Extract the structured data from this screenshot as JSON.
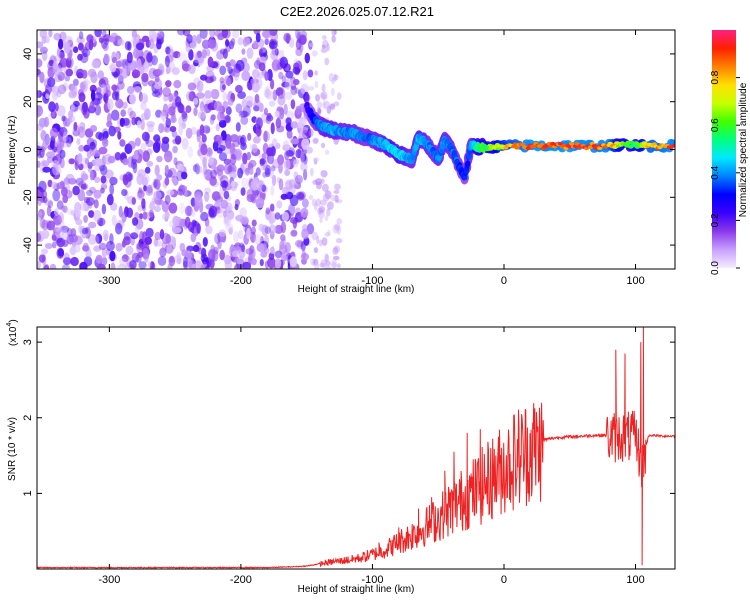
{
  "title": "C2E2.2026.025.07.12.R21",
  "chart_data": [
    {
      "type": "heatmap",
      "xlabel": "Height of straight line (km)",
      "ylabel": "Frequency (Hz)",
      "xlim": [
        -355,
        130
      ],
      "ylim": [
        -50,
        50
      ],
      "xticks": [
        -300,
        -200,
        -100,
        0,
        100
      ],
      "yticks": [
        -40,
        -20,
        0,
        20,
        40
      ],
      "colorbar": {
        "label": "Normalized spectral amplitude",
        "range": [
          0,
          1
        ],
        "ticks": [
          "0.0",
          "0.2",
          "0.4",
          "0.6",
          "0.8"
        ],
        "colors": [
          "#f4ecff",
          "#c8a0ff",
          "#8a3ae8",
          "#3a00ff",
          "#0000ff",
          "#0080ff",
          "#00e8ff",
          "#00ff80",
          "#40ff00",
          "#c8ff00",
          "#ffe000",
          "#ff8000",
          "#ff2000",
          "#ff2080"
        ]
      },
      "noise_region": {
        "x": [
          -355,
          -147
        ],
        "level": 0.18
      },
      "sparse_region": {
        "x": [
          -147,
          -125
        ],
        "level": 0.08
      },
      "ridge": [
        {
          "x": -150,
          "y": 18,
          "v": 0.22
        },
        {
          "x": -145,
          "y": 13,
          "v": 0.3
        },
        {
          "x": -140,
          "y": 10,
          "v": 0.38
        },
        {
          "x": -135,
          "y": 9,
          "v": 0.42
        },
        {
          "x": -130,
          "y": 8,
          "v": 0.42
        },
        {
          "x": -125,
          "y": 8,
          "v": 0.4
        },
        {
          "x": -120,
          "y": 7,
          "v": 0.38
        },
        {
          "x": -115,
          "y": 7,
          "v": 0.4
        },
        {
          "x": -110,
          "y": 6,
          "v": 0.38
        },
        {
          "x": -105,
          "y": 5,
          "v": 0.35
        },
        {
          "x": -100,
          "y": 4,
          "v": 0.38
        },
        {
          "x": -95,
          "y": 3,
          "v": 0.4
        },
        {
          "x": -90,
          "y": 2,
          "v": 0.42
        },
        {
          "x": -85,
          "y": 0,
          "v": 0.45
        },
        {
          "x": -80,
          "y": -2,
          "v": 0.45
        },
        {
          "x": -75,
          "y": -3,
          "v": 0.42
        },
        {
          "x": -70,
          "y": -4,
          "v": 0.38
        },
        {
          "x": -65,
          "y": 5,
          "v": 0.42
        },
        {
          "x": -60,
          "y": 3,
          "v": 0.4
        },
        {
          "x": -55,
          "y": 0,
          "v": 0.38
        },
        {
          "x": -50,
          "y": -4,
          "v": 0.38
        },
        {
          "x": -45,
          "y": 4,
          "v": 0.4
        },
        {
          "x": -40,
          "y": 0,
          "v": 0.38
        },
        {
          "x": -35,
          "y": -6,
          "v": 0.35
        },
        {
          "x": -30,
          "y": -12,
          "v": 0.3
        },
        {
          "x": -25,
          "y": 2,
          "v": 0.38
        },
        {
          "x": -20,
          "y": 1,
          "v": 0.55
        },
        {
          "x": -10,
          "y": 1,
          "v": 0.62
        },
        {
          "x": 0,
          "y": 1.5,
          "v": 0.75
        },
        {
          "x": 20,
          "y": 1.5,
          "v": 0.88
        },
        {
          "x": 40,
          "y": 1.5,
          "v": 0.88
        },
        {
          "x": 60,
          "y": 1.5,
          "v": 0.88
        },
        {
          "x": 80,
          "y": 1.5,
          "v": 0.85
        },
        {
          "x": 90,
          "y": 2,
          "v": 0.62
        },
        {
          "x": 100,
          "y": 2,
          "v": 0.58
        },
        {
          "x": 110,
          "y": 1.5,
          "v": 0.8
        },
        {
          "x": 130,
          "y": 1.5,
          "v": 0.88
        }
      ]
    },
    {
      "type": "line",
      "xlabel": "Height of straight line (km)",
      "ylabel": "SNR (10 * v/v)",
      "scale_label": "(x10",
      "scale_exponent": "4",
      "xlim": [
        -355,
        130
      ],
      "ylim": [
        0,
        3.2
      ],
      "xticks": [
        -300,
        -200,
        -100,
        0,
        100
      ],
      "yticks": [
        1,
        2,
        3
      ],
      "color": "#ee2222",
      "series": [
        {
          "x": [
            -355,
            -300,
            -250,
            -200,
            -180,
            -160,
            -150,
            -140,
            -130,
            -120,
            -110,
            -100,
            -90,
            -80,
            -70,
            -60,
            -50,
            -40,
            -30,
            -20,
            -10,
            0,
            10,
            20,
            30,
            40,
            50,
            60,
            70,
            80,
            85,
            90,
            95,
            100,
            105,
            110,
            120,
            130
          ],
          "y": [
            0.02,
            0.02,
            0.02,
            0.02,
            0.02,
            0.03,
            0.04,
            0.07,
            0.1,
            0.12,
            0.15,
            0.2,
            0.27,
            0.37,
            0.47,
            0.58,
            0.7,
            0.85,
            0.98,
            1.1,
            1.25,
            1.4,
            1.55,
            1.65,
            1.71,
            1.74,
            1.75,
            1.76,
            1.77,
            1.77,
            1.78,
            1.79,
            1.78,
            1.78,
            1.4,
            1.77,
            1.76,
            1.76
          ],
          "spikes": [
            {
              "x": -120,
              "y": 0.16
            },
            {
              "x": -95,
              "y": 0.35
            },
            {
              "x": -80,
              "y": 0.55
            },
            {
              "x": -65,
              "y": 0.8
            },
            {
              "x": -55,
              "y": 0.95
            },
            {
              "x": -45,
              "y": 1.3
            },
            {
              "x": -38,
              "y": 1.55
            },
            {
              "x": -28,
              "y": 1.8
            },
            {
              "x": -18,
              "y": 1.85
            },
            {
              "x": -10,
              "y": 1.6
            },
            {
              "x": 85,
              "y": 2.9
            },
            {
              "x": 92,
              "y": 2.85
            },
            {
              "x": 97,
              "y": 2.05
            },
            {
              "x": 104,
              "y": 3.0
            },
            {
              "x": 106,
              "y": 3.2
            },
            {
              "x": 105,
              "y": 0.05
            }
          ]
        }
      ]
    }
  ]
}
